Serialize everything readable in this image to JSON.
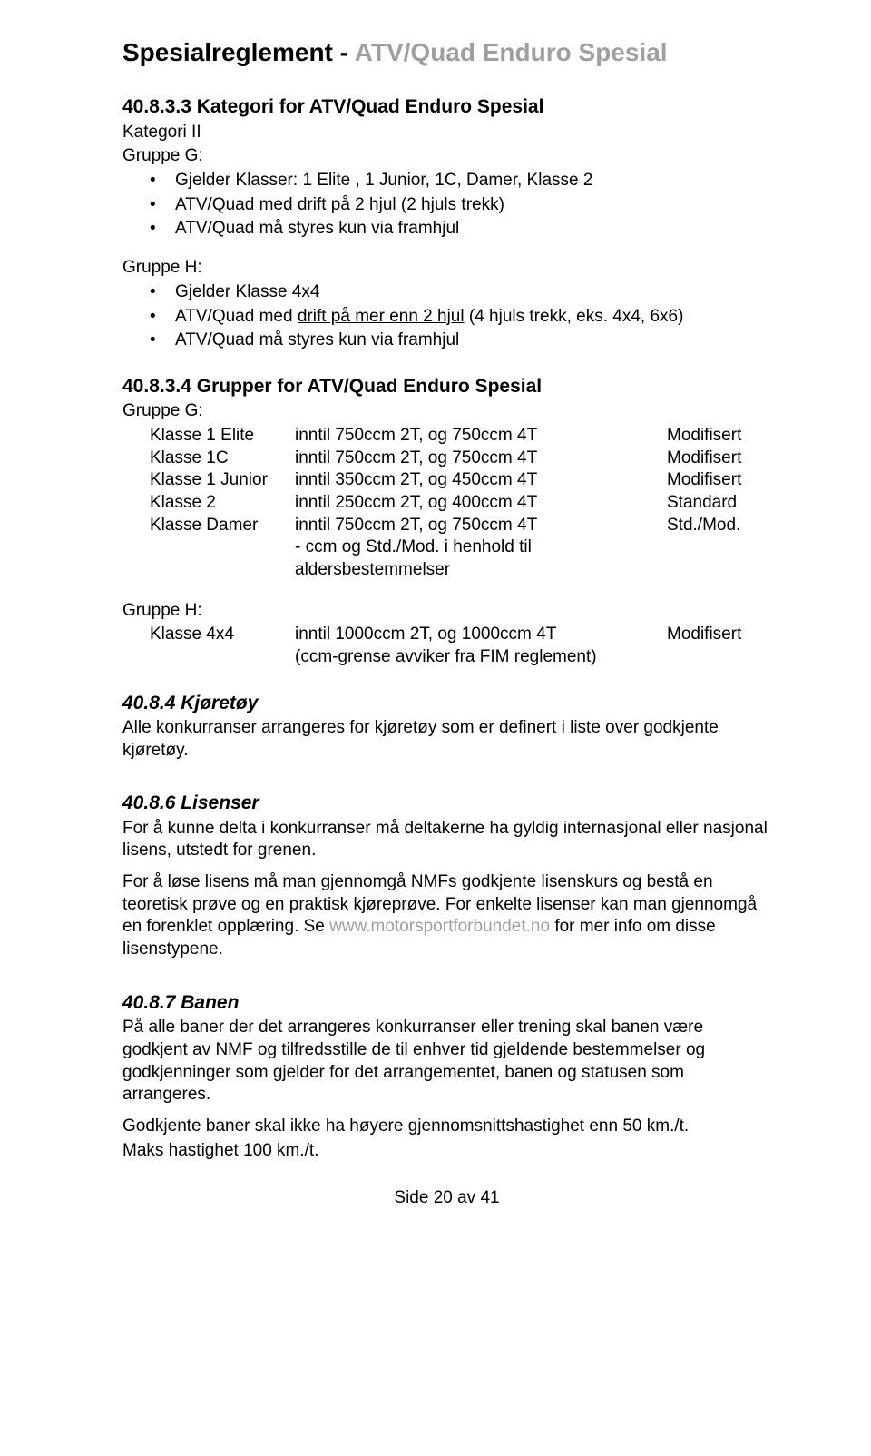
{
  "title_black": "Spesialreglement - ",
  "title_gray": "ATV/Quad Enduro Spesial",
  "sec_40833": {
    "head": "40.8.3.3 Kategori for ATV/Quad Enduro Spesial",
    "kategori": "Kategori II",
    "gruppeG_label": "Gruppe G:",
    "g_bullets": [
      "Gjelder Klasser: 1 Elite , 1 Junior, 1C, Damer, Klasse 2",
      "ATV/Quad med drift på 2 hjul (2 hjuls trekk)",
      "ATV/Quad må styres kun via framhjul"
    ],
    "gruppeH_label": "Gruppe H:",
    "h_bullet1_pre": "Gjelder Klasse 4x4",
    "h_bullet2_pre": "ATV/Quad med ",
    "h_bullet2_underline": "drift på mer enn 2 hjul",
    "h_bullet2_post": " (4 hjuls trekk, eks. 4x4, 6x6)",
    "h_bullet3": "ATV/Quad må styres kun via framhjul"
  },
  "sec_40834": {
    "head": "40.8.3.4 Grupper for ATV/Quad Enduro Spesial",
    "gruppeG_label": "Gruppe G:",
    "g_rows": [
      {
        "c1": "Klasse 1 Elite",
        "c2": "inntil 750ccm 2T, og 750ccm 4T",
        "c3": "Modifisert"
      },
      {
        "c1": "Klasse 1C",
        "c2": "inntil 750ccm 2T, og 750ccm 4T",
        "c3": "Modifisert"
      },
      {
        "c1": "Klasse 1 Junior",
        "c2": "inntil 350ccm 2T, og 450ccm 4T",
        "c3": "Modifisert"
      },
      {
        "c1": "Klasse 2",
        "c2": "inntil 250ccm 2T, og 400ccm 4T",
        "c3": "Standard"
      },
      {
        "c1": "Klasse Damer",
        "c2": "inntil 750ccm 2T, og 750ccm 4T",
        "c3": "Std./Mod."
      }
    ],
    "g_note": "- ccm og Std./Mod. i henhold til aldersbestemmelser",
    "gruppeH_label": "Gruppe H:",
    "h_rows": [
      {
        "c1": "Klasse 4x4",
        "c2": "inntil 1000ccm 2T, og 1000ccm 4T",
        "c3": "Modifisert"
      }
    ],
    "h_note": "(ccm-grense avviker fra FIM reglement)"
  },
  "sec_4084": {
    "head": "40.8.4 Kjøretøy",
    "body": "Alle konkurranser arrangeres for kjøretøy som er definert i liste over godkjente kjøretøy."
  },
  "sec_4086": {
    "head": "40.8.6 Lisenser",
    "p1": "For å kunne delta i konkurranser må deltakerne ha gyldig internasjonal eller nasjonal lisens, utstedt for grenen.",
    "p2_pre": "For å løse lisens må man gjennomgå NMFs godkjente lisenskurs og bestå en teoretisk prøve og en praktisk kjøreprøve. For enkelte lisenser kan man gjennomgå en forenklet opplæring. Se ",
    "p2_link": "www.motorsportforbundet.no",
    "p2_post": " for mer info om disse lisenstypene."
  },
  "sec_4087": {
    "head": "40.8.7 Banen",
    "p1": "På alle baner der det arrangeres konkurranser eller trening skal banen være godkjent av NMF og tilfredsstille de til enhver tid gjeldende bestemmelser og godkjenninger som gjelder for det arrangementet, banen og statusen som arrangeres.",
    "p2": "Godkjente baner skal ikke ha høyere gjennomsnittshastighet enn 50 km./t.",
    "p3": "Maks hastighet 100 km./t."
  },
  "footer": "Side 20 av 41"
}
